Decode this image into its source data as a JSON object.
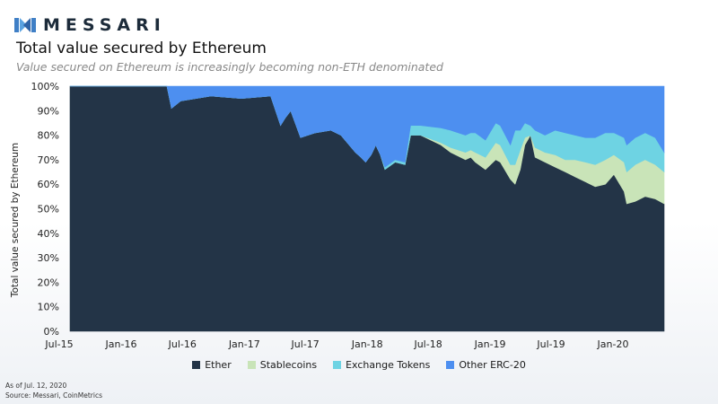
{
  "brand": {
    "name": "MESSARI",
    "logo_icon": "messari-logo-icon"
  },
  "header": {
    "title": "Total value secured by Ethereum",
    "subtitle": "Value secured on Ethereum is increasingly becoming non-ETH denominated"
  },
  "footer": {
    "as_of": "As of Jul. 12, 2020",
    "source": "Source: Messari, CoinMetrics"
  },
  "chart_data": {
    "type": "area",
    "stacked": true,
    "normalized": true,
    "ylabel": "Total value secured by Ethereum",
    "xlabel": "",
    "ylim": [
      0,
      100
    ],
    "y_ticks": [
      "0%",
      "10%",
      "20%",
      "30%",
      "40%",
      "50%",
      "60%",
      "70%",
      "80%",
      "90%",
      "100%"
    ],
    "x_ticks": [
      {
        "label": "Jul-15",
        "date": "2015-07-01"
      },
      {
        "label": "Jan-16",
        "date": "2016-01-01"
      },
      {
        "label": "Jul-16",
        "date": "2016-07-01"
      },
      {
        "label": "Jan-17",
        "date": "2017-01-01"
      },
      {
        "label": "Jul-17",
        "date": "2017-07-01"
      },
      {
        "label": "Jan-18",
        "date": "2018-01-01"
      },
      {
        "label": "Jul-18",
        "date": "2018-07-01"
      },
      {
        "label": "Jan-19",
        "date": "2019-01-01"
      },
      {
        "label": "Jul-19",
        "date": "2019-07-01"
      },
      {
        "label": "Jan-20",
        "date": "2020-01-01"
      }
    ],
    "x_range": [
      "2015-07-30",
      "2020-07-12"
    ],
    "legend_position": "bottom",
    "series_meta": [
      {
        "name": "Ether",
        "color": "#233447"
      },
      {
        "name": "Stablecoins",
        "color": "#c9e4b8"
      },
      {
        "name": "Exchange Tokens",
        "color": "#6ed3e3"
      },
      {
        "name": "Other ERC-20",
        "color": "#4d8ff0"
      }
    ],
    "x": [
      "2015-07-30",
      "2016-01-01",
      "2016-05-20",
      "2016-06-03",
      "2016-07-01",
      "2016-10-01",
      "2017-01-01",
      "2017-04-01",
      "2017-05-01",
      "2017-05-15",
      "2017-06-01",
      "2017-07-01",
      "2017-08-15",
      "2017-10-01",
      "2017-11-01",
      "2017-12-15",
      "2018-01-01",
      "2018-01-15",
      "2018-02-01",
      "2018-02-15",
      "2018-03-01",
      "2018-03-15",
      "2018-04-15",
      "2018-05-15",
      "2018-06-01",
      "2018-07-01",
      "2018-09-01",
      "2018-10-01",
      "2018-11-15",
      "2018-12-01",
      "2018-12-15",
      "2019-01-15",
      "2019-02-15",
      "2019-03-01",
      "2019-04-01",
      "2019-04-15",
      "2019-05-01",
      "2019-05-15",
      "2019-06-01",
      "2019-06-15",
      "2019-07-15",
      "2019-08-15",
      "2019-09-15",
      "2019-10-15",
      "2019-11-15",
      "2019-12-15",
      "2020-01-15",
      "2020-02-10",
      "2020-03-12",
      "2020-03-20",
      "2020-04-15",
      "2020-05-15",
      "2020-06-15",
      "2020-07-12"
    ],
    "series": [
      {
        "name": "Ether",
        "values": [
          100,
          100,
          100,
          91,
          94,
          96,
          95,
          96,
          84,
          87,
          90,
          79,
          81,
          82,
          80,
          73,
          71,
          69,
          72,
          76,
          72,
          66,
          69,
          68,
          80,
          80,
          76,
          73,
          70,
          71,
          69,
          66,
          70,
          69,
          62,
          60,
          66,
          76,
          80,
          71,
          69,
          67,
          65,
          63,
          61,
          59,
          60,
          64,
          57,
          52,
          53,
          55,
          54,
          52
        ]
      },
      {
        "name": "Stablecoins",
        "values": [
          0,
          0,
          0,
          0,
          0,
          0,
          0,
          0,
          0,
          0,
          0,
          0,
          0,
          0,
          0,
          0,
          0,
          0,
          0,
          0,
          0,
          0,
          0,
          0,
          0,
          0,
          1,
          2,
          3,
          3,
          4,
          5,
          7,
          7,
          6,
          8,
          8,
          3,
          0,
          4,
          4,
          5,
          5,
          7,
          8,
          9,
          10,
          8,
          12,
          13,
          15,
          15,
          14,
          13
        ]
      },
      {
        "name": "Exchange Tokens",
        "values": [
          0,
          0,
          0,
          0,
          0,
          0,
          0,
          0,
          0,
          0,
          0,
          0,
          0,
          0,
          0,
          0,
          0,
          0,
          0,
          0,
          0,
          1,
          1,
          1,
          4,
          4,
          6,
          7,
          7,
          7,
          8,
          7,
          8,
          8,
          8,
          14,
          8,
          6,
          4,
          7,
          7,
          10,
          11,
          10,
          10,
          11,
          11,
          9,
          10,
          11,
          11,
          11,
          11,
          8
        ]
      },
      {
        "name": "Other ERC-20",
        "values": [
          0,
          0,
          0,
          9,
          6,
          4,
          5,
          4,
          16,
          13,
          10,
          21,
          19,
          18,
          20,
          27,
          29,
          31,
          28,
          24,
          28,
          33,
          30,
          31,
          16,
          16,
          17,
          18,
          20,
          19,
          19,
          22,
          15,
          16,
          24,
          18,
          18,
          15,
          16,
          18,
          20,
          18,
          19,
          20,
          21,
          21,
          19,
          19,
          21,
          24,
          21,
          19,
          21,
          27
        ]
      }
    ]
  }
}
